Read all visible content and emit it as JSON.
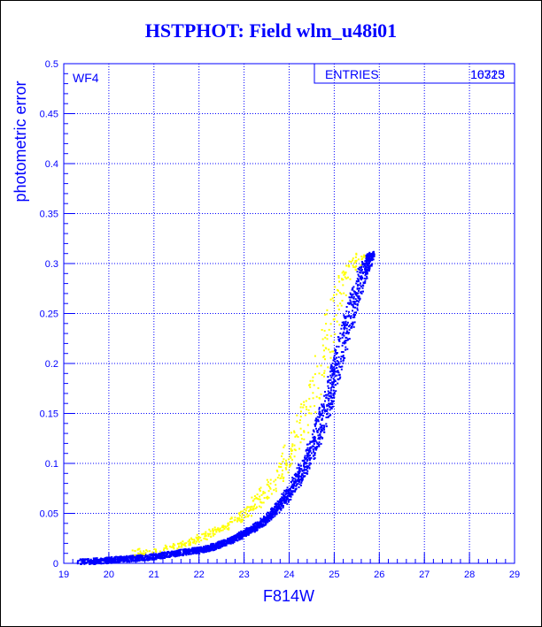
{
  "page": {
    "title": "HSTPHOT: Field wlm_u48i01"
  },
  "colors": {
    "series_primary": "#0000ff",
    "series_secondary": "#ffff00",
    "axis": "#0000ff",
    "grid": "#0000ff",
    "background": "#ffffff"
  },
  "chart_data": {
    "type": "scatter",
    "title": "HSTPHOT: Field wlm_u48i01",
    "xlabel": "F814W",
    "ylabel": "photometric error",
    "xlim": [
      19,
      29
    ],
    "ylim": [
      0,
      0.5
    ],
    "x_ticks": [
      "19",
      "20",
      "21",
      "22",
      "23",
      "24",
      "25",
      "26",
      "27",
      "28",
      "29"
    ],
    "y_ticks": [
      "0",
      "0.05",
      "0.1",
      "0.15",
      "0.2",
      "0.25",
      "0.3",
      "0.35",
      "0.4",
      "0.45",
      "0.5"
    ],
    "grid": true,
    "annotation": "WF4",
    "stats_box": {
      "label": "ENTRIES",
      "value": "10323",
      "value_overprint": "16715",
      "position": "top-right"
    },
    "series": [
      {
        "color": "#0000ff",
        "points": [
          [
            19.3,
            0.002
          ],
          [
            19.7,
            0.003
          ],
          [
            20.0,
            0.004
          ],
          [
            20.3,
            0.005
          ],
          [
            20.6,
            0.006
          ],
          [
            20.9,
            0.007
          ],
          [
            21.2,
            0.009
          ],
          [
            21.5,
            0.011
          ],
          [
            21.8,
            0.013
          ],
          [
            22.0,
            0.014
          ],
          [
            22.2,
            0.016
          ],
          [
            22.4,
            0.019
          ],
          [
            22.6,
            0.022
          ],
          [
            22.8,
            0.026
          ],
          [
            23.0,
            0.031
          ],
          [
            23.2,
            0.036
          ],
          [
            23.4,
            0.042
          ],
          [
            23.6,
            0.05
          ],
          [
            23.8,
            0.06
          ],
          [
            24.0,
            0.072
          ],
          [
            24.2,
            0.087
          ],
          [
            24.4,
            0.105
          ],
          [
            24.6,
            0.128
          ],
          [
            24.8,
            0.156
          ],
          [
            25.0,
            0.19
          ],
          [
            25.2,
            0.225
          ],
          [
            25.4,
            0.26
          ],
          [
            25.6,
            0.29
          ],
          [
            25.75,
            0.305
          ],
          [
            25.8,
            0.31
          ]
        ],
        "spread": [
          0.05,
          0.05,
          0.05,
          0.05,
          0.05,
          0.06,
          0.06,
          0.06,
          0.07,
          0.07,
          0.08,
          0.09,
          0.1,
          0.11,
          0.12,
          0.14,
          0.16,
          0.18,
          0.2,
          0.22,
          0.24,
          0.26,
          0.27,
          0.28,
          0.28,
          0.28,
          0.27,
          0.25,
          0.2,
          0.15
        ]
      },
      {
        "color": "#ffff00",
        "points": [
          [
            20.5,
            0.012
          ],
          [
            21.0,
            0.014
          ],
          [
            21.5,
            0.018
          ],
          [
            21.8,
            0.022
          ],
          [
            22.0,
            0.026
          ],
          [
            22.3,
            0.032
          ],
          [
            22.5,
            0.036
          ],
          [
            22.8,
            0.044
          ],
          [
            23.0,
            0.05
          ],
          [
            23.2,
            0.058
          ],
          [
            23.4,
            0.068
          ],
          [
            23.6,
            0.08
          ],
          [
            23.8,
            0.094
          ],
          [
            24.0,
            0.11
          ],
          [
            24.2,
            0.13
          ],
          [
            24.4,
            0.155
          ],
          [
            24.6,
            0.185
          ],
          [
            24.8,
            0.22
          ],
          [
            25.0,
            0.255
          ],
          [
            25.2,
            0.285
          ],
          [
            25.4,
            0.3
          ],
          [
            25.6,
            0.31
          ]
        ],
        "spread": [
          0.15,
          0.15,
          0.18,
          0.2,
          0.22,
          0.24,
          0.26,
          0.28,
          0.3,
          0.32,
          0.34,
          0.36,
          0.38,
          0.4,
          0.42,
          0.42,
          0.42,
          0.4,
          0.38,
          0.35,
          0.3,
          0.25
        ]
      }
    ]
  }
}
